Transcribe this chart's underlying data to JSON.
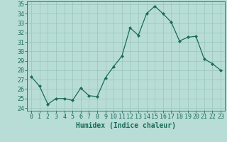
{
  "x": [
    0,
    1,
    2,
    3,
    4,
    5,
    6,
    7,
    8,
    9,
    10,
    11,
    12,
    13,
    14,
    15,
    16,
    17,
    18,
    19,
    20,
    21,
    22,
    23
  ],
  "y": [
    27.3,
    26.3,
    24.4,
    25.0,
    25.0,
    24.8,
    26.1,
    25.3,
    25.2,
    27.2,
    28.4,
    29.5,
    32.5,
    31.7,
    34.0,
    34.8,
    34.0,
    33.1,
    31.1,
    31.5,
    31.6,
    29.2,
    28.7,
    28.0
  ],
  "line_color": "#1a6b5a",
  "marker": "D",
  "marker_size": 2,
  "bg_color": "#b8ddd6",
  "grid_color": "#99c4bc",
  "xlabel": "Humidex (Indice chaleur)",
  "xlabel_fontsize": 7,
  "ytick_min": 24,
  "ytick_max": 35,
  "ytick_step": 1,
  "tick_fontsize": 6,
  "axis_color": "#1a6b5a"
}
